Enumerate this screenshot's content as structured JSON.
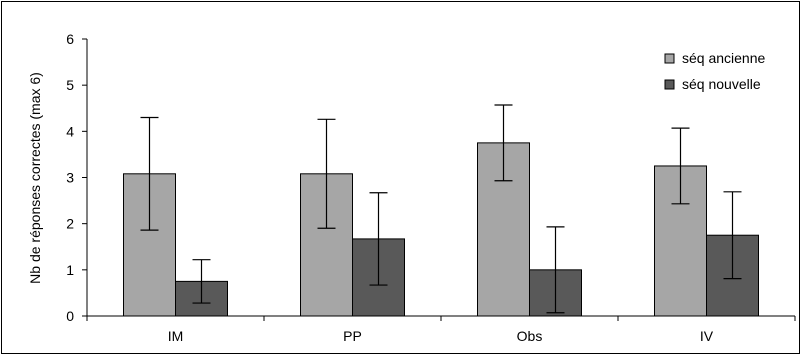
{
  "chart_data": {
    "type": "bar",
    "title": "",
    "xlabel": "",
    "ylabel": "Nb de réponses correctes (max 6)",
    "ylim": [
      0,
      6
    ],
    "yticks": [
      0,
      1,
      2,
      3,
      4,
      5,
      6
    ],
    "grid": false,
    "legend_position": "top-right",
    "categories": [
      "IM",
      "PP",
      "Obs",
      "IV"
    ],
    "series": [
      {
        "name": "séq ancienne",
        "color": "#a6a6a6",
        "values": [
          3.08,
          3.08,
          3.75,
          3.25
        ],
        "error": [
          1.22,
          1.18,
          0.82,
          0.82
        ]
      },
      {
        "name": "séq nouvelle",
        "color": "#595959",
        "values": [
          0.75,
          1.67,
          1.0,
          1.75
        ],
        "error": [
          0.47,
          1.0,
          0.93,
          0.94
        ]
      }
    ]
  }
}
